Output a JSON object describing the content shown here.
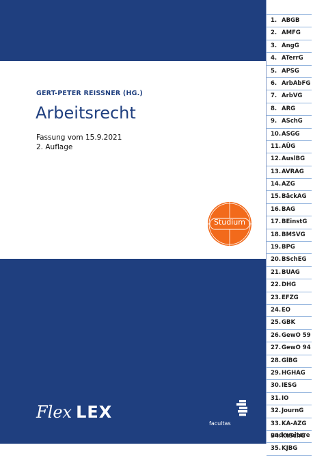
{
  "book": {
    "editor": "GERT-PETER REISSNER (HG.)",
    "title": "Arbeitsrecht",
    "edition_date": "Fassung vom 15.9.2021",
    "edition_number": "2. Auflage",
    "badge": "Studium",
    "brand_flex": "Flex",
    "brand_lex": "LEX",
    "publisher": "facultas"
  },
  "colors": {
    "navy": "#1f3f7f",
    "orange": "#f26a1b",
    "tab_line": "#8fb1dc"
  },
  "index": {
    "items": [
      {
        "num": "1.",
        "label": "ABGB"
      },
      {
        "num": "2.",
        "label": "AMFG"
      },
      {
        "num": "3.",
        "label": "AngG"
      },
      {
        "num": "4.",
        "label": "ATerrG"
      },
      {
        "num": "5.",
        "label": "APSG"
      },
      {
        "num": "6.",
        "label": "ArbAbFG"
      },
      {
        "num": "7.",
        "label": "ArbVG"
      },
      {
        "num": "8.",
        "label": "ARG"
      },
      {
        "num": "9.",
        "label": "ASchG"
      },
      {
        "num": "10.",
        "label": "ASGG"
      },
      {
        "num": "11.",
        "label": "AÜG"
      },
      {
        "num": "12.",
        "label": "AuslBG"
      },
      {
        "num": "13.",
        "label": "AVRAG"
      },
      {
        "num": "14.",
        "label": "AZG"
      },
      {
        "num": "15.",
        "label": "BäckAG"
      },
      {
        "num": "16.",
        "label": "BAG"
      },
      {
        "num": "17.",
        "label": "BEinstG"
      },
      {
        "num": "18.",
        "label": "BMSVG"
      },
      {
        "num": "19.",
        "label": "BPG"
      },
      {
        "num": "20.",
        "label": "BSchEG"
      },
      {
        "num": "21.",
        "label": "BUAG"
      },
      {
        "num": "22.",
        "label": "DHG"
      },
      {
        "num": "23.",
        "label": "EFZG"
      },
      {
        "num": "24.",
        "label": "EO"
      },
      {
        "num": "25.",
        "label": "GBK"
      },
      {
        "num": "26.",
        "label": "GewO 59"
      },
      {
        "num": "27.",
        "label": "GewO 94"
      },
      {
        "num": "28.",
        "label": "GlBG"
      },
      {
        "num": "29.",
        "label": "HGHAG"
      },
      {
        "num": "30.",
        "label": "IESG"
      },
      {
        "num": "31.",
        "label": "IO"
      },
      {
        "num": "32.",
        "label": "JournG"
      },
      {
        "num": "33.",
        "label": "KA-AZG"
      },
      {
        "num": "34.",
        "label": "KtSchG"
      },
      {
        "num": "35.",
        "label": "KJBG"
      }
    ],
    "more": "und weitere"
  }
}
